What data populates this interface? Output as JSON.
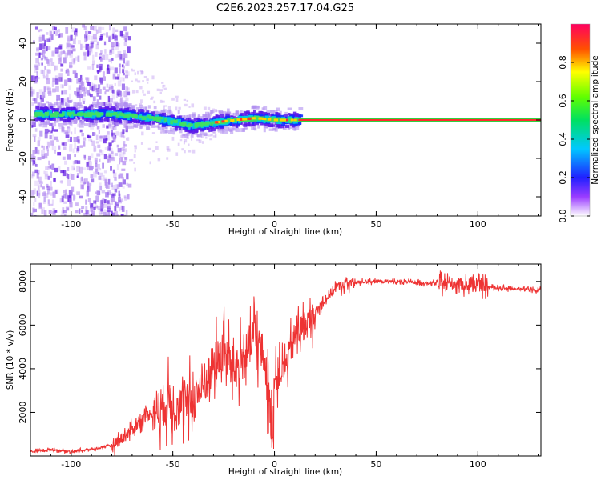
{
  "title": "C2E6.2023.257.17.04.G25",
  "chart_data": [
    {
      "type": "heatmap",
      "xlabel": "Height of straight line (km)",
      "ylabel": "Frequency (Hz)",
      "xlim": [
        -120,
        131
      ],
      "ylim": [
        -50,
        50
      ],
      "xticks": [
        -100,
        -50,
        0,
        50,
        100
      ],
      "yticks": [
        -40,
        -20,
        0,
        20,
        40
      ],
      "colorbar": {
        "label": "Normalized spectral amplitude",
        "range": [
          0,
          1
        ],
        "ticks": [
          0,
          0.2,
          0.4,
          0.6,
          0.8
        ],
        "tick_labels": [
          "0.0",
          "0.2",
          "0.4",
          "0.6",
          "0.8"
        ]
      },
      "ridge": [
        {
          "x": -118,
          "y": 3
        },
        {
          "x": -100,
          "y": 3
        },
        {
          "x": -90,
          "y": 3
        },
        {
          "x": -80,
          "y": 3
        },
        {
          "x": -70,
          "y": 2
        },
        {
          "x": -60,
          "y": 1
        },
        {
          "x": -50,
          "y": -1
        },
        {
          "x": -42,
          "y": -3
        },
        {
          "x": -35,
          "y": -2
        },
        {
          "x": -28,
          "y": -1
        },
        {
          "x": -20,
          "y": 0
        },
        {
          "x": -10,
          "y": 1
        },
        {
          "x": 0,
          "y": 0
        },
        {
          "x": 10,
          "y": 0
        },
        {
          "x": 131,
          "y": 0
        }
      ],
      "steady_band": {
        "x_start": 12,
        "x_end": 131,
        "y": 0
      }
    },
    {
      "type": "line",
      "xlabel": "Height of straight line (km)",
      "ylabel": "SNR (10 * v/v)",
      "xlim": [
        -120,
        131
      ],
      "ylim": [
        0,
        8800
      ],
      "xticks": [
        -100,
        -50,
        0,
        50,
        100
      ],
      "yticks": [
        2000,
        4000,
        6000,
        8000
      ],
      "series": [
        {
          "color": "#ee3333",
          "x": [
            -120,
            -110,
            -100,
            -90,
            -80,
            -75,
            -70,
            -65,
            -60,
            -55,
            -50,
            -45,
            -40,
            -35,
            -30,
            -25,
            -20,
            -15,
            -10,
            -5,
            -1,
            0,
            5,
            10,
            15,
            20,
            25,
            30,
            35,
            40,
            45,
            50,
            60,
            70,
            80,
            85,
            90,
            95,
            100,
            110,
            120,
            131
          ],
          "y": [
            200,
            300,
            200,
            300,
            500,
            800,
            1200,
            1700,
            2000,
            2300,
            2500,
            2200,
            2600,
            3200,
            4200,
            4800,
            4000,
            4500,
            5500,
            4500,
            1000,
            3500,
            4000,
            5500,
            6000,
            6500,
            7200,
            7700,
            7900,
            7950,
            8000,
            8000,
            8000,
            7950,
            7900,
            7900,
            7900,
            7800,
            7800,
            7700,
            7650,
            7600
          ]
        }
      ]
    }
  ]
}
